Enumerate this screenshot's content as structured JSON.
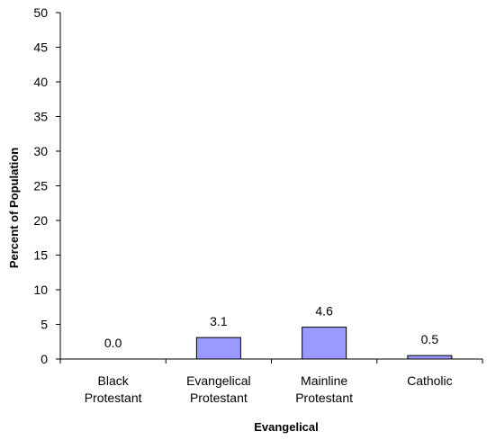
{
  "chart_data": {
    "type": "bar",
    "title": "",
    "xlabel": "Evangelical",
    "ylabel": "Percent of Population",
    "ylim": [
      0,
      50
    ],
    "yticks": [
      0,
      5,
      10,
      15,
      20,
      25,
      30,
      35,
      40,
      45,
      50
    ],
    "ytick_labels": [
      "0",
      "5",
      "10",
      "15",
      "20",
      "25",
      "30",
      "35",
      "40",
      "45",
      "50"
    ],
    "grid": false,
    "legend": "none",
    "categories": [
      [
        "Black",
        "Protestant"
      ],
      [
        "Evangelical",
        "Protestant"
      ],
      [
        "Mainline",
        "Protestant"
      ],
      [
        "Catholic"
      ]
    ],
    "values": [
      0.0,
      3.1,
      4.6,
      0.5
    ],
    "data_labels": [
      "0.0",
      "3.1",
      "4.6",
      "0.5"
    ],
    "colors": {
      "bar_fill": "#9999ff",
      "bar_stroke": "#000000",
      "axis": "#000000"
    }
  }
}
